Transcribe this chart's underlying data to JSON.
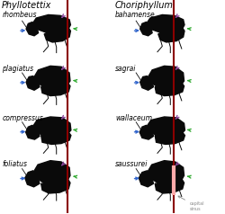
{
  "left_genus": "Phyllotettix",
  "right_genus": "Choriphyllum",
  "right_subgenus": "bahamense",
  "left_species": [
    "rhombeus",
    "plagiatus",
    "compressus",
    "foliatus"
  ],
  "right_species": [
    "sagrai",
    "wallaceum",
    "saussurei"
  ],
  "red_line_color": "#8b0000",
  "blue": "#3366cc",
  "green": "#33aa33",
  "purple": "#884499",
  "pink": "#ffaaaa",
  "grey": "#888888",
  "silhouette_color": "#0a0a0a",
  "white": "#ffffff",
  "title_fs": 7,
  "sub_fs": 5.5,
  "label_fs": 5.5
}
